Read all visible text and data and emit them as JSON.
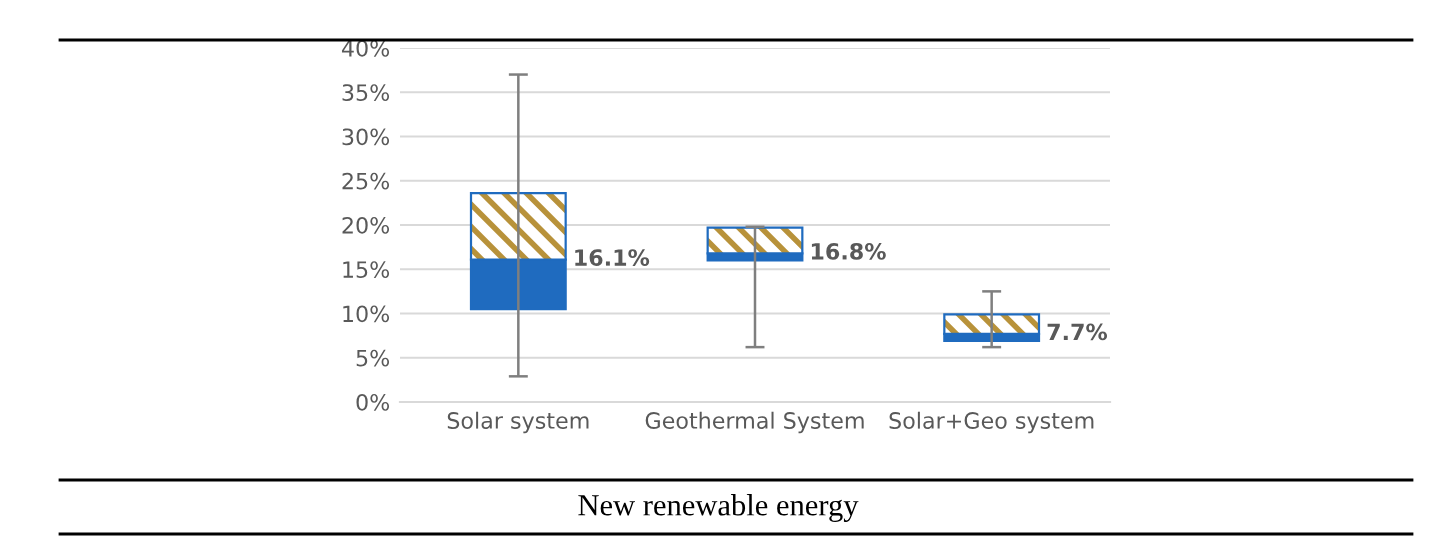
{
  "chart_data": {
    "type": "box",
    "categories": [
      "Solar system",
      "Geothermal System",
      "Solar+Geo system"
    ],
    "boxes": [
      {
        "low": 2.9,
        "q1": 10.5,
        "median": 16.1,
        "q3": 23.6,
        "high": 37.0
      },
      {
        "low": 6.2,
        "q1": 16.0,
        "median": 16.8,
        "q3": 19.7,
        "high": 19.8
      },
      {
        "low": 6.2,
        "q1": 6.9,
        "median": 7.7,
        "q3": 9.9,
        "high": 12.5
      }
    ],
    "value_labels": [
      "16.1%",
      "16.8%",
      "7.7%"
    ],
    "color": "#1f6bbf",
    "ylim": [
      0,
      40
    ],
    "yticks": [
      {
        "value": 0,
        "label": "0%"
      },
      {
        "value": 5,
        "label": "5%"
      },
      {
        "value": 10,
        "label": "10%"
      },
      {
        "value": 15,
        "label": "15%"
      },
      {
        "value": 20,
        "label": "20%"
      },
      {
        "value": 25,
        "label": "25%"
      },
      {
        "value": 30,
        "label": "30%"
      },
      {
        "value": 35,
        "label": "35%"
      },
      {
        "value": 40,
        "label": "40%"
      }
    ],
    "grid": "y",
    "annotations": [
      "New renewable energy"
    ]
  }
}
